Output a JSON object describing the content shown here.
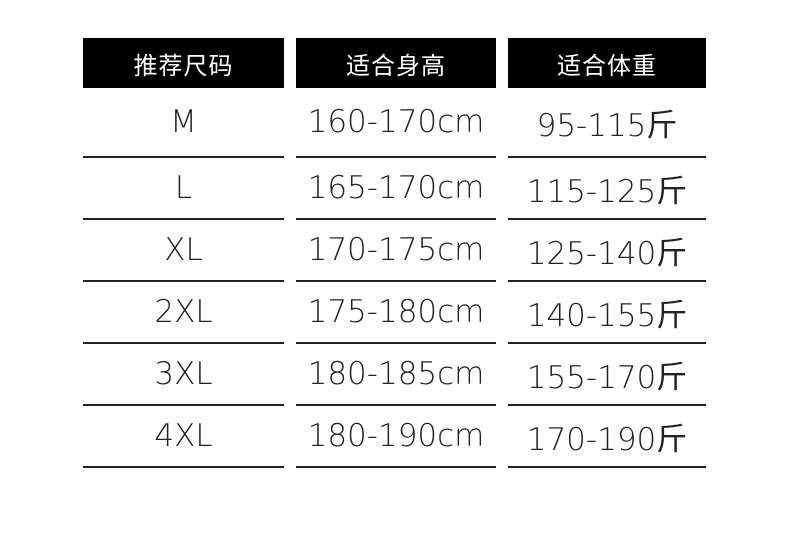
{
  "headers": [
    "推荐尺码",
    "适合身高",
    "适合体重"
  ],
  "rows": [
    [
      "M",
      "160-170cm",
      "95-115斤"
    ],
    [
      "L",
      "165-170cm",
      "115-125斤"
    ],
    [
      "XL",
      "170-175cm",
      "125-140斤"
    ],
    [
      "2XL",
      "175-180cm",
      "140-155斤"
    ],
    [
      "3XL",
      "180-185cm",
      "155-170斤"
    ],
    [
      "4XL",
      "180-190cm",
      "170-190斤"
    ]
  ]
}
